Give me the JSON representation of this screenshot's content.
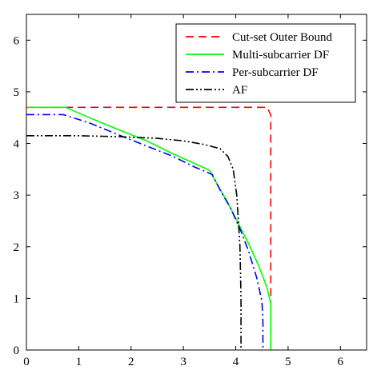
{
  "chart_data": {
    "type": "line",
    "title": "",
    "xlabel": "",
    "ylabel": "",
    "xlim": [
      0,
      6.5
    ],
    "ylim": [
      0,
      6.5
    ],
    "xticks": [
      0,
      1,
      2,
      3,
      4,
      5,
      6
    ],
    "yticks": [
      0,
      1,
      2,
      3,
      4,
      5,
      6
    ],
    "grid": false,
    "legend_position": "top-right",
    "series": [
      {
        "name": "Cut-set Outer Bound",
        "color": "#ff0000",
        "dash": "dashed",
        "x": [
          0,
          4.6,
          4.67,
          4.67
        ],
        "y": [
          4.7,
          4.7,
          4.55,
          0
        ]
      },
      {
        "name": "Multi-subcarrier DF",
        "color": "#00ff00",
        "dash": "solid",
        "x": [
          0,
          0.75,
          1.2,
          1.8,
          2.3,
          2.8,
          3.2,
          3.5,
          3.65,
          3.85,
          4.05,
          4.25,
          4.45,
          4.6,
          4.67,
          4.67
        ],
        "y": [
          4.7,
          4.7,
          4.5,
          4.25,
          4.05,
          3.8,
          3.62,
          3.48,
          3.2,
          2.85,
          2.45,
          2.05,
          1.6,
          1.2,
          0.9,
          0
        ]
      },
      {
        "name": "Per-subcarrier DF",
        "color": "#0000ff",
        "dash": "dashdot",
        "x": [
          0,
          0.7,
          1.2,
          1.8,
          2.3,
          2.8,
          3.2,
          3.55,
          3.7,
          3.9,
          4.1,
          4.25,
          4.4,
          4.5,
          4.52,
          4.52
        ],
        "y": [
          4.56,
          4.56,
          4.4,
          4.15,
          3.95,
          3.75,
          3.55,
          3.4,
          3.1,
          2.75,
          2.3,
          1.9,
          1.4,
          0.95,
          0.55,
          0
        ]
      },
      {
        "name": "AF",
        "color": "#000000",
        "dash": "dashdotdot",
        "x": [
          0,
          1.0,
          1.8,
          2.5,
          3.0,
          3.4,
          3.7,
          3.85,
          3.95,
          4.02,
          4.08,
          4.1,
          4.1
        ],
        "y": [
          4.15,
          4.15,
          4.13,
          4.1,
          4.05,
          3.98,
          3.9,
          3.75,
          3.5,
          3.0,
          2.0,
          1.0,
          0
        ]
      }
    ]
  }
}
